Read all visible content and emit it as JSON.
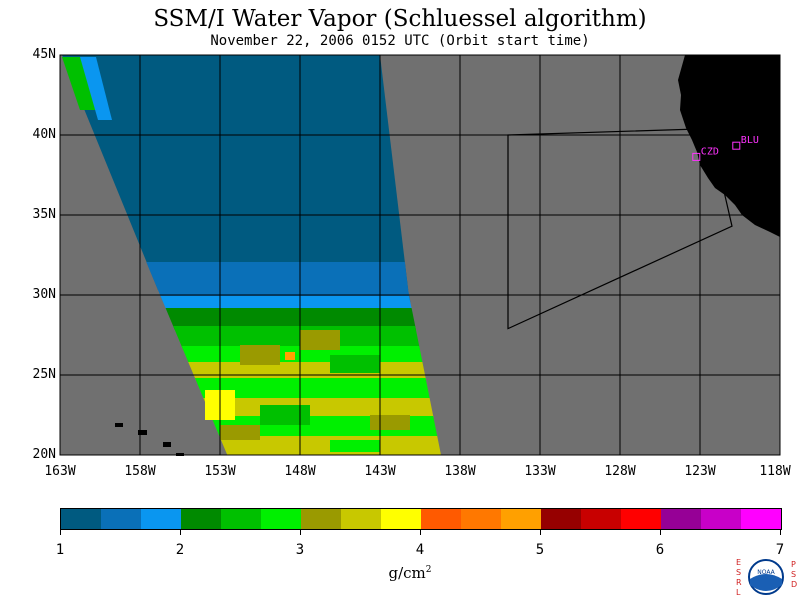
{
  "title": "SSM/I Water Vapor (Schluessel algorithm)",
  "subtitle": "November 22, 2006  0152 UTC  (Orbit start time)",
  "map": {
    "lat_range": [
      20,
      45
    ],
    "lon_range": [
      -163,
      -118
    ],
    "lat_ticks": [
      "45N",
      "40N",
      "35N",
      "30N",
      "25N",
      "20N"
    ],
    "lon_ticks": [
      "163W",
      "158W",
      "153W",
      "148W",
      "143W",
      "138W",
      "133W",
      "128W",
      "123W",
      "118W"
    ],
    "ocean_color": "#707070",
    "land_color": "#000000",
    "stations": [
      {
        "label": "CZD",
        "lat": 38.6,
        "lon": -123.2
      },
      {
        "label": "BLU",
        "lat": 39.3,
        "lon": -120.7
      }
    ],
    "domain_box": [
      {
        "lat": 40.0,
        "lon": -135.0
      },
      {
        "lat": 40.4,
        "lon": -122.4
      },
      {
        "lat": 34.3,
        "lon": -121.0
      },
      {
        "lat": 27.9,
        "lon": -135.0
      }
    ]
  },
  "colorbar": {
    "labels": [
      "1",
      "2",
      "3",
      "4",
      "5",
      "6",
      "7"
    ],
    "units": "g/cm",
    "units_exp": "2",
    "colors": [
      "#005a80",
      "#0a70b8",
      "#0a96f0",
      "#008a00",
      "#00c000",
      "#00f000",
      "#9a9a00",
      "#c8c800",
      "#ffff00",
      "#ff5a00",
      "#ff7800",
      "#ffa000",
      "#960000",
      "#c80000",
      "#ff0000",
      "#960096",
      "#c800c8",
      "#ff00ff"
    ]
  },
  "logo": {
    "left_letters": [
      "E",
      "S",
      "R",
      "L"
    ],
    "right_letters": [
      "P",
      "S",
      "D"
    ],
    "center_text": "NOAA"
  }
}
